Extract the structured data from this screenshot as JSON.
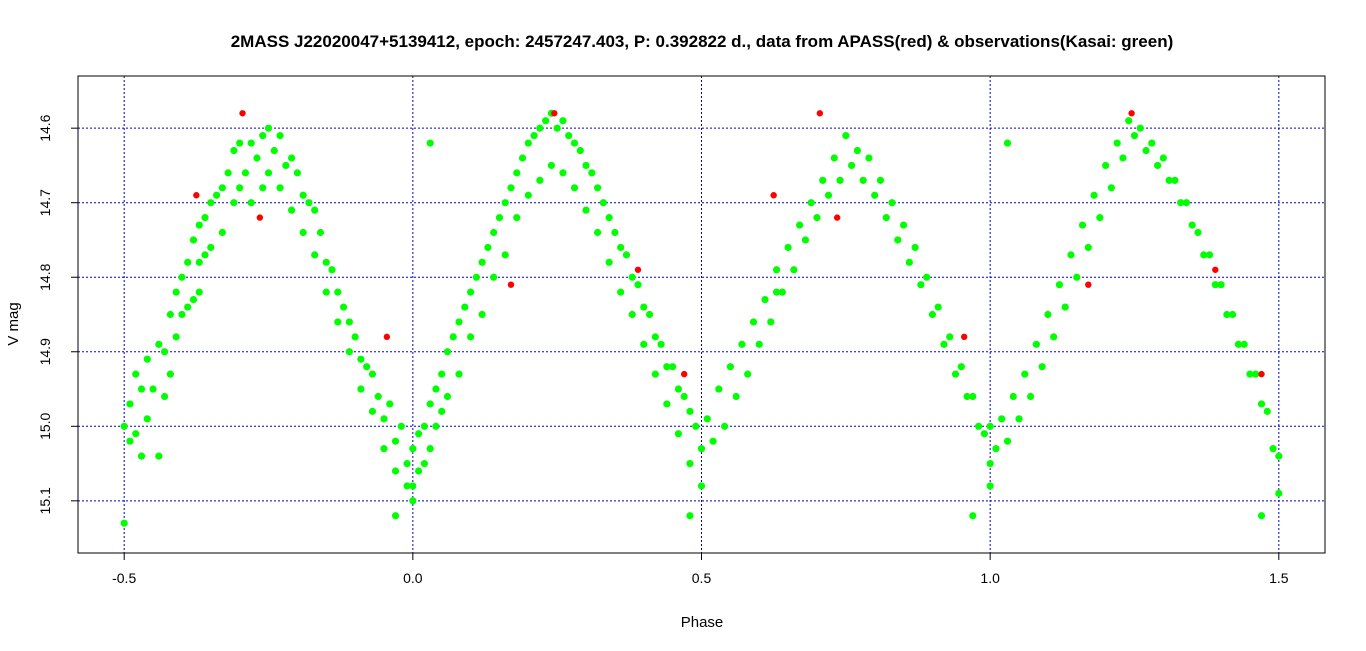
{
  "chart_data": {
    "type": "scatter",
    "title": "2MASS J22020047+5139412, epoch: 2457247.403, P: 0.392822 d., data from APASS(red) & observations(Kasai: green)",
    "xlabel": "Phase",
    "ylabel": "V mag",
    "xlim": [
      -0.58,
      1.58
    ],
    "ylim": [
      15.17,
      14.53
    ],
    "y_inverted": true,
    "grid": true,
    "grid_color": "#0000cc",
    "x_ticks": [
      -0.5,
      0.0,
      0.5,
      1.0,
      1.5
    ],
    "x_tick_labels": [
      "-0.5",
      "0.0",
      "0.5",
      "1.0",
      "1.5"
    ],
    "y_ticks": [
      14.6,
      14.7,
      14.8,
      14.9,
      15.0,
      15.1
    ],
    "y_tick_labels": [
      "14.6",
      "14.7",
      "14.8",
      "14.9",
      "15.0",
      "15.1"
    ],
    "colors": {
      "apass": "#ff0000",
      "kasai": "#00ff00"
    },
    "series": [
      {
        "name": "observations(Kasai: green)",
        "color": "#00ff00",
        "points": [
          [
            -0.5,
            15.0
          ],
          [
            -0.5,
            15.13
          ],
          [
            -0.49,
            14.97
          ],
          [
            -0.49,
            15.02
          ],
          [
            -0.48,
            14.93
          ],
          [
            -0.48,
            15.01
          ],
          [
            -0.47,
            14.95
          ],
          [
            -0.47,
            15.04
          ],
          [
            -0.46,
            14.91
          ],
          [
            -0.46,
            14.99
          ],
          [
            -0.45,
            14.95
          ],
          [
            -0.44,
            14.89
          ],
          [
            -0.44,
            15.04
          ],
          [
            -0.43,
            14.9
          ],
          [
            -0.43,
            14.96
          ],
          [
            -0.42,
            14.85
          ],
          [
            -0.42,
            14.93
          ],
          [
            -0.41,
            14.82
          ],
          [
            -0.41,
            14.88
          ],
          [
            -0.4,
            14.8
          ],
          [
            -0.4,
            14.85
          ],
          [
            -0.39,
            14.78
          ],
          [
            -0.39,
            14.84
          ],
          [
            -0.38,
            14.75
          ],
          [
            -0.38,
            14.83
          ],
          [
            -0.37,
            14.73
          ],
          [
            -0.37,
            14.78
          ],
          [
            -0.36,
            14.72
          ],
          [
            -0.36,
            14.77
          ],
          [
            -0.35,
            14.7
          ],
          [
            -0.35,
            14.76
          ],
          [
            -0.34,
            14.69
          ],
          [
            -0.33,
            14.68
          ],
          [
            -0.33,
            14.74
          ],
          [
            -0.32,
            14.66
          ],
          [
            -0.31,
            14.63
          ],
          [
            -0.31,
            14.7
          ],
          [
            -0.3,
            14.62
          ],
          [
            -0.3,
            14.68
          ],
          [
            -0.29,
            14.66
          ],
          [
            -0.28,
            14.62
          ],
          [
            -0.28,
            14.7
          ],
          [
            -0.27,
            14.64
          ],
          [
            -0.26,
            14.61
          ],
          [
            -0.26,
            14.68
          ],
          [
            -0.25,
            14.6
          ],
          [
            -0.25,
            14.66
          ],
          [
            -0.24,
            14.63
          ],
          [
            -0.23,
            14.61
          ],
          [
            -0.23,
            14.68
          ],
          [
            -0.22,
            14.65
          ],
          [
            -0.21,
            14.64
          ],
          [
            -0.21,
            14.71
          ],
          [
            -0.2,
            14.66
          ],
          [
            -0.19,
            14.69
          ],
          [
            -0.19,
            14.74
          ],
          [
            -0.18,
            14.7
          ],
          [
            -0.17,
            14.71
          ],
          [
            -0.17,
            14.77
          ],
          [
            -0.16,
            14.74
          ],
          [
            -0.15,
            14.78
          ],
          [
            -0.15,
            14.82
          ],
          [
            -0.14,
            14.79
          ],
          [
            -0.13,
            14.82
          ],
          [
            -0.13,
            14.86
          ],
          [
            -0.12,
            14.84
          ],
          [
            -0.11,
            14.86
          ],
          [
            -0.11,
            14.9
          ],
          [
            -0.1,
            14.88
          ],
          [
            -0.09,
            14.91
          ],
          [
            -0.09,
            14.95
          ],
          [
            -0.08,
            14.92
          ],
          [
            -0.07,
            14.93
          ],
          [
            -0.07,
            14.98
          ],
          [
            -0.06,
            14.96
          ],
          [
            -0.05,
            14.99
          ],
          [
            -0.05,
            15.03
          ],
          [
            -0.04,
            14.97
          ],
          [
            -0.03,
            15.02
          ],
          [
            -0.03,
            15.06
          ],
          [
            -0.02,
            15.0
          ],
          [
            -0.01,
            15.05
          ],
          [
            -0.01,
            15.08
          ],
          [
            0.0,
            15.03
          ],
          [
            0.0,
            15.1
          ],
          [
            0.01,
            15.01
          ],
          [
            0.01,
            15.06
          ],
          [
            0.02,
            15.0
          ],
          [
            0.02,
            15.05
          ],
          [
            0.03,
            14.97
          ],
          [
            0.03,
            15.03
          ],
          [
            0.04,
            14.95
          ],
          [
            0.04,
            15.0
          ],
          [
            0.05,
            14.93
          ],
          [
            0.05,
            14.98
          ],
          [
            0.06,
            14.9
          ],
          [
            0.06,
            14.96
          ],
          [
            0.07,
            14.88
          ],
          [
            0.08,
            14.86
          ],
          [
            0.08,
            14.93
          ],
          [
            0.09,
            14.84
          ],
          [
            0.1,
            14.82
          ],
          [
            0.1,
            14.88
          ],
          [
            0.11,
            14.8
          ],
          [
            0.12,
            14.78
          ],
          [
            0.12,
            14.85
          ],
          [
            0.13,
            14.76
          ],
          [
            0.14,
            14.74
          ],
          [
            0.14,
            14.8
          ],
          [
            0.15,
            14.72
          ],
          [
            0.16,
            14.7
          ],
          [
            0.16,
            14.77
          ],
          [
            0.17,
            14.68
          ],
          [
            0.18,
            14.66
          ],
          [
            0.18,
            14.72
          ],
          [
            0.19,
            14.64
          ],
          [
            0.2,
            14.62
          ],
          [
            0.2,
            14.69
          ],
          [
            0.21,
            14.61
          ],
          [
            0.22,
            14.6
          ],
          [
            0.22,
            14.67
          ],
          [
            0.23,
            14.59
          ],
          [
            0.24,
            14.58
          ],
          [
            0.24,
            14.65
          ],
          [
            0.25,
            14.6
          ],
          [
            0.26,
            14.59
          ],
          [
            0.26,
            14.66
          ],
          [
            0.27,
            14.61
          ],
          [
            0.28,
            14.62
          ],
          [
            0.28,
            14.68
          ],
          [
            0.29,
            14.63
          ],
          [
            0.3,
            14.65
          ],
          [
            0.3,
            14.71
          ],
          [
            0.31,
            14.66
          ],
          [
            0.32,
            14.68
          ],
          [
            0.32,
            14.74
          ],
          [
            0.33,
            14.7
          ],
          [
            0.34,
            14.72
          ],
          [
            0.34,
            14.78
          ],
          [
            0.35,
            14.74
          ],
          [
            0.36,
            14.76
          ],
          [
            0.36,
            14.82
          ],
          [
            0.37,
            14.77
          ],
          [
            0.38,
            14.8
          ],
          [
            0.38,
            14.85
          ],
          [
            0.39,
            14.81
          ],
          [
            0.4,
            14.84
          ],
          [
            0.4,
            14.89
          ],
          [
            0.41,
            14.85
          ],
          [
            0.42,
            14.88
          ],
          [
            0.42,
            14.93
          ],
          [
            0.43,
            14.89
          ],
          [
            0.44,
            14.92
          ],
          [
            0.44,
            14.97
          ],
          [
            0.45,
            14.92
          ],
          [
            0.46,
            14.95
          ],
          [
            0.46,
            15.01
          ],
          [
            0.47,
            14.96
          ],
          [
            0.48,
            14.98
          ],
          [
            0.48,
            15.05
          ],
          [
            0.49,
            15.0
          ],
          [
            0.5,
            15.03
          ],
          [
            0.5,
            15.08
          ],
          [
            0.51,
            14.99
          ],
          [
            0.52,
            15.02
          ],
          [
            0.53,
            14.95
          ],
          [
            0.54,
            15.0
          ],
          [
            0.55,
            14.92
          ],
          [
            0.56,
            14.96
          ],
          [
            0.57,
            14.89
          ],
          [
            0.58,
            14.93
          ],
          [
            0.59,
            14.86
          ],
          [
            0.6,
            14.89
          ],
          [
            0.61,
            14.83
          ],
          [
            0.62,
            14.86
          ],
          [
            0.63,
            14.79
          ],
          [
            0.64,
            14.82
          ],
          [
            0.65,
            14.76
          ],
          [
            0.66,
            14.79
          ],
          [
            0.67,
            14.73
          ],
          [
            0.68,
            14.75
          ],
          [
            0.69,
            14.7
          ],
          [
            0.7,
            14.72
          ],
          [
            0.71,
            14.67
          ],
          [
            0.72,
            14.69
          ],
          [
            0.73,
            14.64
          ],
          [
            0.74,
            14.67
          ],
          [
            0.75,
            14.61
          ],
          [
            0.76,
            14.65
          ],
          [
            0.77,
            14.63
          ],
          [
            0.78,
            14.67
          ],
          [
            0.79,
            14.64
          ],
          [
            0.8,
            14.69
          ],
          [
            0.81,
            14.67
          ],
          [
            0.82,
            14.72
          ],
          [
            0.83,
            14.7
          ],
          [
            0.84,
            14.75
          ],
          [
            0.85,
            14.73
          ],
          [
            0.86,
            14.78
          ],
          [
            0.87,
            14.76
          ],
          [
            0.88,
            14.81
          ],
          [
            0.89,
            14.8
          ],
          [
            0.9,
            14.85
          ],
          [
            0.91,
            14.84
          ],
          [
            0.92,
            14.89
          ],
          [
            0.93,
            14.88
          ],
          [
            0.94,
            14.93
          ],
          [
            0.95,
            14.92
          ],
          [
            0.96,
            14.96
          ],
          [
            0.97,
            14.96
          ],
          [
            0.98,
            15.0
          ],
          [
            0.99,
            15.01
          ],
          [
            1.0,
            15.05
          ],
          [
            1.0,
            15.0
          ],
          [
            1.01,
            15.03
          ],
          [
            1.02,
            14.99
          ],
          [
            1.03,
            15.02
          ],
          [
            1.04,
            14.96
          ],
          [
            1.05,
            14.99
          ],
          [
            1.06,
            14.93
          ],
          [
            1.07,
            14.96
          ],
          [
            1.08,
            14.89
          ],
          [
            1.09,
            14.92
          ],
          [
            1.1,
            14.85
          ],
          [
            1.11,
            14.88
          ],
          [
            1.12,
            14.81
          ],
          [
            1.13,
            14.84
          ],
          [
            1.14,
            14.77
          ],
          [
            1.15,
            14.8
          ],
          [
            1.16,
            14.73
          ],
          [
            1.17,
            14.76
          ],
          [
            1.18,
            14.69
          ],
          [
            1.19,
            14.72
          ],
          [
            1.2,
            14.65
          ],
          [
            1.21,
            14.68
          ],
          [
            1.22,
            14.62
          ],
          [
            1.23,
            14.64
          ],
          [
            1.24,
            14.59
          ],
          [
            1.25,
            14.61
          ],
          [
            1.26,
            14.6
          ],
          [
            1.27,
            14.63
          ],
          [
            1.28,
            14.62
          ],
          [
            1.29,
            14.65
          ],
          [
            1.3,
            14.64
          ],
          [
            1.31,
            14.67
          ],
          [
            1.32,
            14.67
          ],
          [
            1.33,
            14.7
          ],
          [
            1.34,
            14.7
          ],
          [
            1.35,
            14.73
          ],
          [
            1.36,
            14.74
          ],
          [
            1.37,
            14.77
          ],
          [
            1.38,
            14.77
          ],
          [
            1.39,
            14.81
          ],
          [
            1.4,
            14.81
          ],
          [
            1.41,
            14.85
          ],
          [
            1.42,
            14.85
          ],
          [
            1.43,
            14.89
          ],
          [
            1.44,
            14.89
          ],
          [
            1.45,
            14.93
          ],
          [
            1.46,
            14.93
          ],
          [
            1.47,
            14.97
          ],
          [
            1.48,
            14.98
          ],
          [
            1.49,
            15.03
          ],
          [
            1.5,
            15.04
          ],
          [
            1.5,
            15.09
          ],
          [
            0.03,
            14.62
          ],
          [
            1.03,
            14.62
          ],
          [
            -0.37,
            14.82
          ],
          [
            0.63,
            14.82
          ],
          [
            0.48,
            15.12
          ],
          [
            -0.03,
            15.12
          ],
          [
            0.97,
            15.12
          ],
          [
            1.47,
            15.12
          ],
          [
            0.0,
            15.08
          ],
          [
            1.0,
            15.08
          ]
        ]
      },
      {
        "name": "APASS(red)",
        "color": "#ff0000",
        "points": [
          [
            -0.295,
            14.58
          ],
          [
            -0.265,
            14.72
          ],
          [
            -0.375,
            14.69
          ],
          [
            -0.045,
            14.88
          ],
          [
            0.17,
            14.81
          ],
          [
            0.245,
            14.58
          ],
          [
            0.39,
            14.79
          ],
          [
            0.47,
            14.93
          ],
          [
            0.625,
            14.69
          ],
          [
            0.705,
            14.58
          ],
          [
            0.735,
            14.72
          ],
          [
            0.955,
            14.88
          ],
          [
            1.17,
            14.81
          ],
          [
            1.245,
            14.58
          ],
          [
            1.39,
            14.79
          ],
          [
            1.47,
            14.93
          ]
        ]
      }
    ]
  }
}
